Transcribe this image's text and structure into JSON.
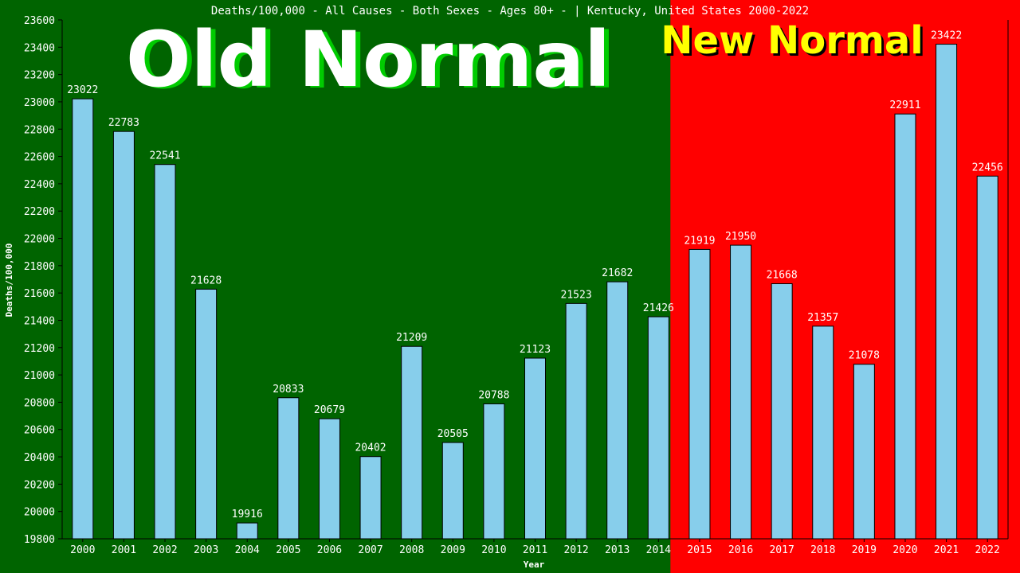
{
  "colors": {
    "old_bg": "#006400",
    "new_bg": "#ff0000",
    "bar_fill": "#87ceeb",
    "bar_stroke": "#000000",
    "axis": "#000000",
    "text": "#ffffff",
    "old_banner_fill": "#ffffff",
    "old_banner_shadow": "#00cc00",
    "new_banner_fill": "#ffff00",
    "new_banner_shadow": "#000000"
  },
  "banners": {
    "old": "Old Normal",
    "new": "New Normal"
  },
  "chart_data": {
    "type": "bar",
    "title": "Deaths/100,000 - All Causes - Both Sexes - Ages 80+ -  | Kentucky, United States 2000-2022",
    "xlabel": "Year",
    "ylabel": "Deaths/100,000",
    "ylim": [
      19800,
      23600
    ],
    "yticks": [
      19800,
      20000,
      20200,
      20400,
      20600,
      20800,
      21000,
      21200,
      21400,
      21600,
      21800,
      22000,
      22200,
      22400,
      22600,
      22800,
      23000,
      23200,
      23400,
      23600
    ],
    "categories": [
      "2000",
      "2001",
      "2002",
      "2003",
      "2004",
      "2005",
      "2006",
      "2007",
      "2008",
      "2009",
      "2010",
      "2011",
      "2012",
      "2013",
      "2014",
      "2015",
      "2016",
      "2017",
      "2018",
      "2019",
      "2020",
      "2021",
      "2022"
    ],
    "values": [
      23022,
      22783,
      22541,
      21628,
      19916,
      20833,
      20679,
      20402,
      21209,
      20505,
      20788,
      21123,
      21523,
      21682,
      21426,
      21919,
      21950,
      21668,
      21357,
      21078,
      22911,
      23422,
      22456
    ],
    "new_normal_split_after": "2014",
    "grid": false,
    "legend": "none"
  }
}
